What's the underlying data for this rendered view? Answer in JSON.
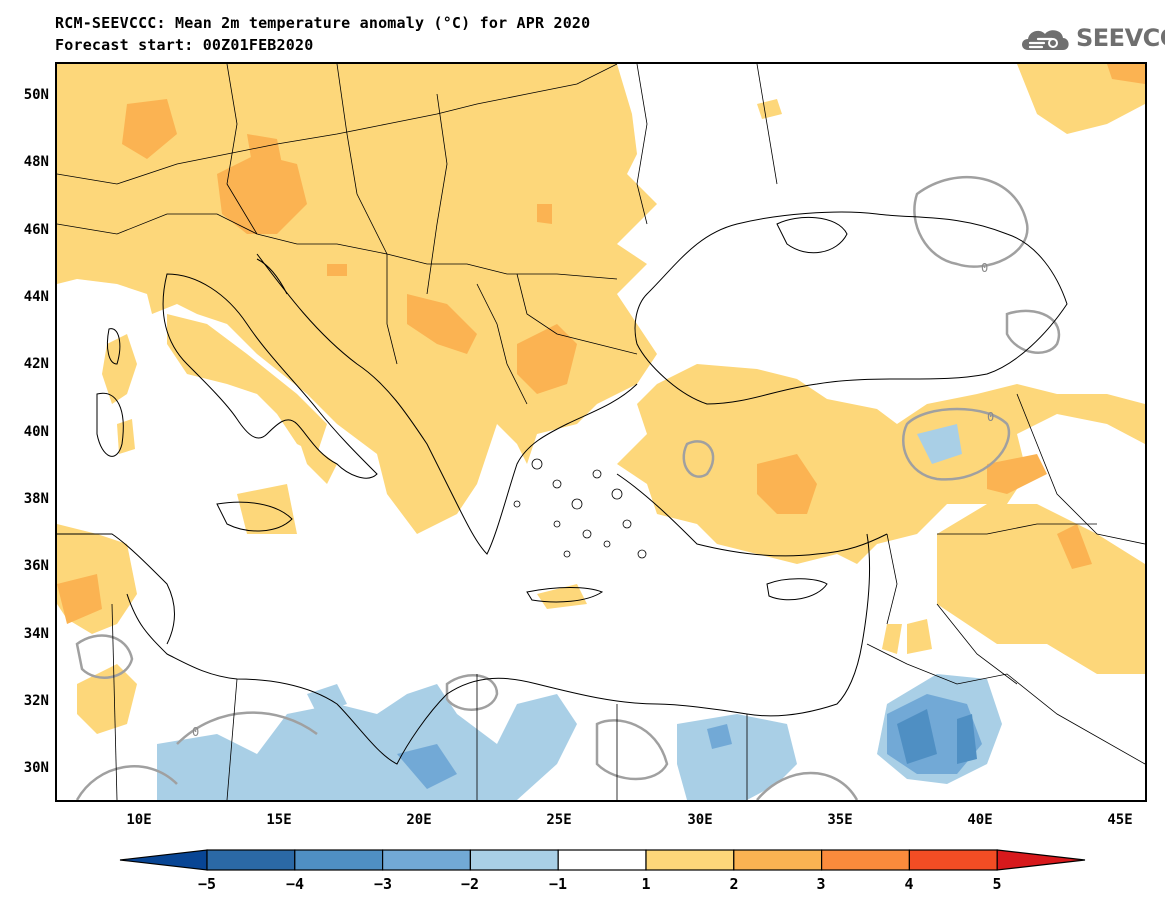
{
  "title": {
    "line1": "RCM-SEEVCCC: Mean 2m temperature anomaly (°C) for APR 2020",
    "line2": "Forecast start: 00Z01FEB2020"
  },
  "logo": {
    "icon": "cloud-logo-icon",
    "text": "SEEVCCC"
  },
  "map": {
    "lat_labels": [
      "50N",
      "48N",
      "46N",
      "44N",
      "42N",
      "40N",
      "38N",
      "36N",
      "34N",
      "32N",
      "30N"
    ],
    "lon_labels": [
      "10E",
      "15E",
      "20E",
      "25E",
      "30E",
      "35E",
      "40E",
      "45E"
    ],
    "contour_label": "0",
    "extent": {
      "lon": [
        7,
        46
      ],
      "lat": [
        29,
        51
      ]
    }
  },
  "colorbar": {
    "labels": [
      "−5",
      "−4",
      "−3",
      "−2",
      "−1",
      "1",
      "2",
      "3",
      "4",
      "5"
    ],
    "colors": [
      "#084594",
      "#2b69a6",
      "#4f8fc3",
      "#72a9d6",
      "#a9cfe6",
      "#ffffff",
      "#fdd77a",
      "#fbb352",
      "#fb8b3c",
      "#f24d24",
      "#d7191c"
    ]
  },
  "legend_colors": {
    "land_anomaly_1_2": "#fdd77a",
    "land_anomaly_2_3": "#fbb352",
    "land_anomaly_3_4": "#fb8b3c",
    "cold_1_2": "#a9cfe6",
    "cold_2_3": "#72a9d6",
    "cold_3_4": "#4f8fc3",
    "zero_contour": "#a0a0a0"
  }
}
